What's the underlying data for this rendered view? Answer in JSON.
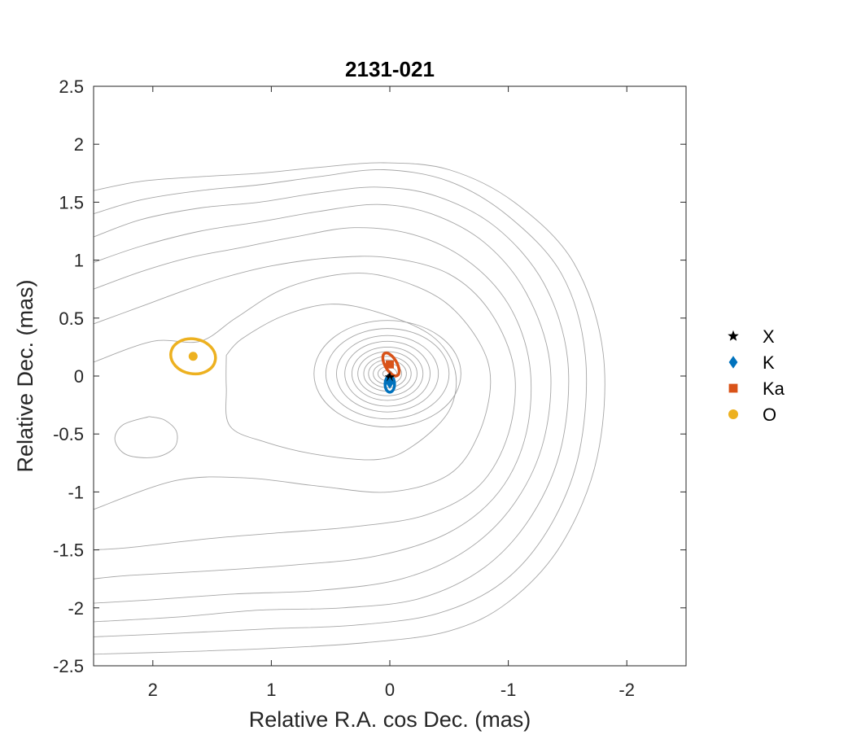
{
  "chart_data": {
    "type": "scatter",
    "title": "2131-021",
    "xlabel": "Relative R.A. cos Dec. (mas)",
    "ylabel": "Relative Dec. (mas)",
    "xlim": [
      2.5,
      -2.5
    ],
    "ylim": [
      -2.5,
      2.5
    ],
    "x_reversed": true,
    "xticks": [
      2,
      1,
      0,
      -1,
      -2
    ],
    "xtick_labels": [
      "2",
      "1",
      "0",
      "-1",
      "-2"
    ],
    "yticks": [
      2.5,
      2,
      1.5,
      1,
      0.5,
      0,
      -0.5,
      -1,
      -1.5,
      -2,
      -2.5
    ],
    "ytick_labels": [
      "2.5",
      "2",
      "1.5",
      "1",
      "0.5",
      "0",
      "-0.5",
      "-1",
      "-1.5",
      "-2",
      "-2.5"
    ],
    "grid": false,
    "legend_position": "right",
    "contours": {
      "color": "#a6a6a6",
      "center": [
        0.02,
        0.02
      ],
      "core_levels_radii": [
        [
          0.04,
          0.03
        ],
        [
          0.08,
          0.06
        ],
        [
          0.12,
          0.09
        ],
        [
          0.16,
          0.12
        ],
        [
          0.2,
          0.15
        ],
        [
          0.25,
          0.19
        ],
        [
          0.3,
          0.23
        ],
        [
          0.36,
          0.28
        ],
        [
          0.43,
          0.33
        ],
        [
          0.52,
          0.39
        ],
        [
          0.62,
          0.46
        ]
      ],
      "outer_curves": [
        [
          [
            1.38,
            0.18
          ],
          [
            1.25,
            0.32
          ],
          [
            0.9,
            0.52
          ],
          [
            0.5,
            0.62
          ],
          [
            0.1,
            0.55
          ],
          [
            -0.35,
            0.35
          ],
          [
            -0.55,
            0.05
          ],
          [
            -0.5,
            -0.3
          ],
          [
            -0.2,
            -0.6
          ],
          [
            0.1,
            -0.72
          ],
          [
            0.6,
            -0.68
          ],
          [
            1.05,
            -0.57
          ],
          [
            1.35,
            -0.43
          ],
          [
            1.38,
            -0.1
          ],
          [
            1.38,
            0.18
          ]
        ],
        [
          [
            2.5,
            0.12
          ],
          [
            2.0,
            0.3
          ],
          [
            1.6,
            0.3
          ],
          [
            1.3,
            0.5
          ],
          [
            0.9,
            0.75
          ],
          [
            0.4,
            0.88
          ],
          [
            0.0,
            0.85
          ],
          [
            -0.45,
            0.65
          ],
          [
            -0.75,
            0.3
          ],
          [
            -0.85,
            -0.05
          ],
          [
            -0.75,
            -0.5
          ],
          [
            -0.5,
            -0.85
          ],
          [
            0.0,
            -1.0
          ],
          [
            0.6,
            -0.95
          ],
          [
            1.2,
            -0.88
          ],
          [
            1.8,
            -0.9
          ],
          [
            2.5,
            -1.15
          ]
        ],
        [
          [
            2.5,
            0.45
          ],
          [
            2.1,
            0.6
          ],
          [
            1.7,
            0.75
          ],
          [
            1.4,
            0.85
          ],
          [
            1.0,
            0.95
          ],
          [
            0.5,
            1.02
          ],
          [
            0.0,
            1.02
          ],
          [
            -0.5,
            0.88
          ],
          [
            -0.85,
            0.55
          ],
          [
            -1.05,
            0.05
          ],
          [
            -1.0,
            -0.5
          ],
          [
            -0.75,
            -0.95
          ],
          [
            -0.3,
            -1.2
          ],
          [
            0.3,
            -1.3
          ],
          [
            0.9,
            -1.35
          ],
          [
            1.5,
            -1.4
          ],
          [
            2.2,
            -1.48
          ],
          [
            2.5,
            -1.5
          ]
        ],
        [
          [
            2.5,
            0.75
          ],
          [
            2.1,
            0.9
          ],
          [
            1.7,
            1.02
          ],
          [
            1.3,
            1.1
          ],
          [
            0.8,
            1.2
          ],
          [
            0.3,
            1.28
          ],
          [
            -0.2,
            1.22
          ],
          [
            -0.65,
            1.0
          ],
          [
            -1.0,
            0.62
          ],
          [
            -1.18,
            0.1
          ],
          [
            -1.15,
            -0.5
          ],
          [
            -0.92,
            -1.0
          ],
          [
            -0.5,
            -1.35
          ],
          [
            0.1,
            -1.55
          ],
          [
            0.8,
            -1.63
          ],
          [
            1.5,
            -1.68
          ],
          [
            2.2,
            -1.72
          ],
          [
            2.5,
            -1.75
          ]
        ],
        [
          [
            2.5,
            0.98
          ],
          [
            2.1,
            1.12
          ],
          [
            1.6,
            1.25
          ],
          [
            1.1,
            1.33
          ],
          [
            0.6,
            1.42
          ],
          [
            0.1,
            1.48
          ],
          [
            -0.35,
            1.4
          ],
          [
            -0.8,
            1.15
          ],
          [
            -1.15,
            0.72
          ],
          [
            -1.35,
            0.12
          ],
          [
            -1.3,
            -0.55
          ],
          [
            -1.05,
            -1.1
          ],
          [
            -0.65,
            -1.5
          ],
          [
            -0.1,
            -1.75
          ],
          [
            0.6,
            -1.85
          ],
          [
            1.3,
            -1.88
          ],
          [
            2.0,
            -1.93
          ],
          [
            2.5,
            -1.96
          ]
        ],
        [
          [
            2.5,
            1.2
          ],
          [
            2.1,
            1.35
          ],
          [
            1.6,
            1.45
          ],
          [
            1.1,
            1.5
          ],
          [
            0.6,
            1.58
          ],
          [
            0.1,
            1.63
          ],
          [
            -0.4,
            1.55
          ],
          [
            -0.9,
            1.28
          ],
          [
            -1.3,
            0.8
          ],
          [
            -1.5,
            0.15
          ],
          [
            -1.45,
            -0.6
          ],
          [
            -1.2,
            -1.2
          ],
          [
            -0.8,
            -1.65
          ],
          [
            -0.25,
            -1.92
          ],
          [
            0.4,
            -2.0
          ],
          [
            1.1,
            -2.02
          ],
          [
            1.8,
            -2.08
          ],
          [
            2.5,
            -2.12
          ]
        ],
        [
          [
            2.5,
            1.4
          ],
          [
            2.1,
            1.52
          ],
          [
            1.6,
            1.6
          ],
          [
            1.1,
            1.65
          ],
          [
            0.6,
            1.72
          ],
          [
            0.05,
            1.78
          ],
          [
            -0.5,
            1.68
          ],
          [
            -1.0,
            1.38
          ],
          [
            -1.45,
            0.88
          ],
          [
            -1.65,
            0.18
          ],
          [
            -1.6,
            -0.65
          ],
          [
            -1.35,
            -1.3
          ],
          [
            -0.95,
            -1.78
          ],
          [
            -0.4,
            -2.05
          ],
          [
            0.3,
            -2.15
          ],
          [
            1.0,
            -2.18
          ],
          [
            1.8,
            -2.22
          ],
          [
            2.5,
            -2.25
          ]
        ],
        [
          [
            2.5,
            1.6
          ],
          [
            2.1,
            1.68
          ],
          [
            1.6,
            1.72
          ],
          [
            1.1,
            1.75
          ],
          [
            0.6,
            1.8
          ],
          [
            0.05,
            1.84
          ],
          [
            -0.5,
            1.78
          ],
          [
            -1.05,
            1.5
          ],
          [
            -1.55,
            0.98
          ],
          [
            -1.8,
            0.2
          ],
          [
            -1.75,
            -0.7
          ],
          [
            -1.45,
            -1.45
          ],
          [
            -1.0,
            -1.95
          ],
          [
            -0.5,
            -2.2
          ],
          [
            0.2,
            -2.3
          ],
          [
            1.0,
            -2.35
          ],
          [
            1.8,
            -2.38
          ],
          [
            2.5,
            -2.4
          ]
        ],
        [
          [
            2.03,
            -0.35
          ],
          [
            2.25,
            -0.42
          ],
          [
            2.32,
            -0.55
          ],
          [
            2.22,
            -0.68
          ],
          [
            1.98,
            -0.7
          ],
          [
            1.82,
            -0.62
          ],
          [
            1.8,
            -0.48
          ],
          [
            1.9,
            -0.38
          ],
          [
            2.03,
            -0.35
          ]
        ]
      ]
    },
    "series": [
      {
        "name": "X",
        "marker": "star",
        "color": "#000000",
        "points": [
          [
            0.0,
            -0.01
          ]
        ],
        "error_ellipses": [
          [
            0.0,
            -0.02,
            0.02,
            0.03,
            0
          ]
        ]
      },
      {
        "name": "K",
        "marker": "diamond",
        "color": "#0072bd",
        "points": [
          [
            0.0,
            -0.06
          ]
        ],
        "error_ellipses": [
          [
            0.0,
            -0.07,
            0.04,
            0.07,
            0
          ]
        ]
      },
      {
        "name": "Ka",
        "marker": "square",
        "color": "#d95319",
        "points": [
          [
            0.0,
            0.1
          ]
        ],
        "error_ellipses": [
          [
            -0.01,
            0.1,
            0.05,
            0.11,
            -30
          ]
        ]
      },
      {
        "name": "O",
        "marker": "circle",
        "color": "#edb120",
        "points": [
          [
            1.66,
            0.17
          ]
        ],
        "error_ellipses": [
          [
            1.66,
            0.17,
            0.19,
            0.15,
            10
          ]
        ]
      }
    ]
  }
}
